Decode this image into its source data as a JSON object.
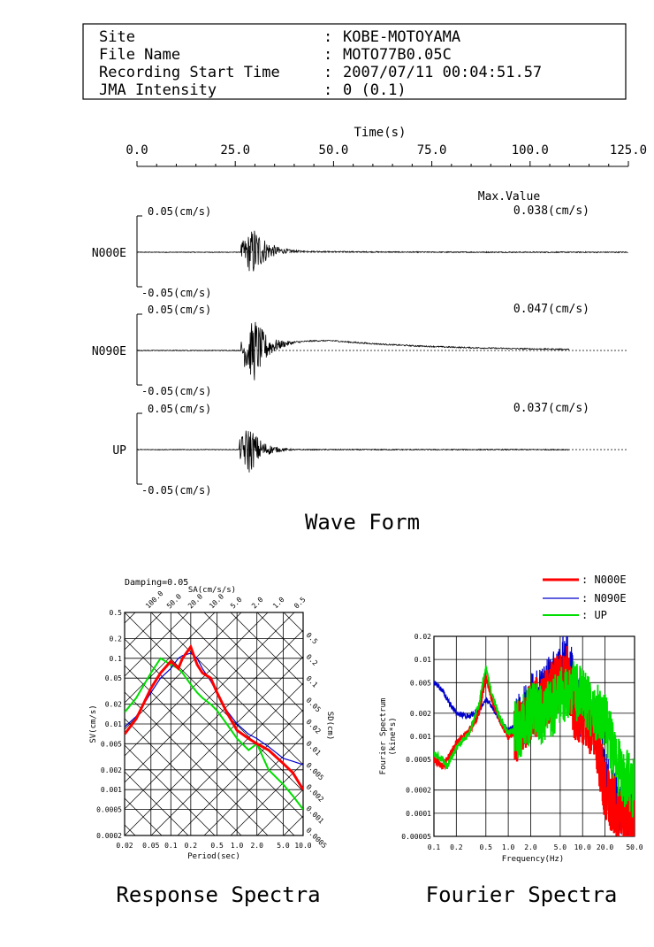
{
  "header": {
    "rows": [
      {
        "label": "Site",
        "value": "KOBE-MOTOYAMA"
      },
      {
        "label": "File Name",
        "value": "MOTO77B0.05C"
      },
      {
        "label": "Recording Start Time",
        "value": "2007/07/11 00:04:51.57"
      },
      {
        "label": "JMA Intensity",
        "value": "0 (0.1)"
      }
    ]
  },
  "waveform": {
    "title": "Wave Form",
    "time_axis_label": "Time(s)",
    "time_ticks": [
      "0.0",
      "25.0",
      "50.0",
      "75.0",
      "100.0",
      "125.0"
    ],
    "max_value_label": "Max.Value",
    "channels": [
      {
        "name": "N000E",
        "max_value": "0.038(cm/s)",
        "top_label": "0.05(cm/s)",
        "bottom_label": "-0.05(cm/s)"
      },
      {
        "name": "N090E",
        "max_value": "0.047(cm/s)",
        "top_label": "0.05(cm/s)",
        "bottom_label": "-0.05(cm/s)"
      },
      {
        "name": "UP",
        "max_value": "0.037(cm/s)",
        "top_label": "0.05(cm/s)",
        "bottom_label": "-0.05(cm/s)"
      }
    ]
  },
  "response": {
    "title": "Response Spectra",
    "damping": "Damping=0.05",
    "sa_label": "SA(cm/s/s)",
    "sd_label": "SD(cm)",
    "sv_label": "SV(cm/s)",
    "xlabel": "Period(sec)"
  },
  "fourier": {
    "title": "Fourier Spectra",
    "ylabel_line1": "Fourier Spectrum",
    "ylabel_line2": "(kine*s)",
    "xlabel": "Frequency(Hz)"
  },
  "legend": [
    {
      "name": ": N000E",
      "color": "#ff0000"
    },
    {
      "name": ": N090E",
      "color": "#0000cc"
    },
    {
      "name": ": UP",
      "color": "#00dd00"
    }
  ],
  "chart_data": [
    {
      "type": "line",
      "title": "Wave Form",
      "xlabel": "Time(s)",
      "xlim": [
        0,
        125
      ],
      "ylim": [
        -0.05,
        0.05
      ],
      "series": [
        {
          "name": "N000E",
          "peak_abs": 0.038,
          "duration_s": 125
        },
        {
          "name": "N090E",
          "peak_abs": 0.047,
          "duration_s": 110
        },
        {
          "name": "UP",
          "peak_abs": 0.037,
          "duration_s": 110
        }
      ]
    },
    {
      "type": "line",
      "title": "Response Spectra",
      "xlabel": "Period(sec)",
      "ylabel": "SV(cm/s)",
      "xscale": "log",
      "yscale": "log",
      "xlim": [
        0.02,
        10.0
      ],
      "ylim": [
        0.0002,
        0.5
      ],
      "xticks": [
        0.02,
        0.05,
        0.1,
        0.2,
        0.5,
        1.0,
        2.0,
        5.0,
        10.0
      ],
      "yticks": [
        0.0002,
        0.0005,
        0.001,
        0.002,
        0.005,
        0.01,
        0.02,
        0.05,
        0.1,
        0.2,
        0.5
      ],
      "sa_ticks": [
        100.0,
        50.0,
        20.0,
        10.0,
        5.0,
        2.0,
        1.0,
        0.5
      ],
      "sd_ticks": [
        0.5,
        0.2,
        0.1,
        0.05,
        0.02,
        0.01,
        0.005,
        0.002,
        0.001,
        0.0005
      ],
      "series": [
        {
          "name": "N000E",
          "x": [
            0.02,
            0.03,
            0.05,
            0.07,
            0.1,
            0.13,
            0.15,
            0.2,
            0.25,
            0.3,
            0.4,
            0.5,
            0.7,
            1.0,
            1.5,
            2.0,
            3.0,
            5.0,
            7.0,
            10.0
          ],
          "y": [
            0.007,
            0.012,
            0.035,
            0.06,
            0.09,
            0.07,
            0.1,
            0.15,
            0.08,
            0.06,
            0.05,
            0.03,
            0.015,
            0.008,
            0.006,
            0.005,
            0.004,
            0.0025,
            0.0018,
            0.001
          ]
        },
        {
          "name": "N090E",
          "x": [
            0.02,
            0.03,
            0.05,
            0.07,
            0.1,
            0.13,
            0.15,
            0.2,
            0.25,
            0.3,
            0.4,
            0.5,
            0.7,
            1.0,
            1.5,
            2.0,
            3.0,
            5.0,
            7.0,
            10.0
          ],
          "y": [
            0.009,
            0.013,
            0.03,
            0.05,
            0.07,
            0.1,
            0.11,
            0.12,
            0.1,
            0.07,
            0.045,
            0.03,
            0.016,
            0.01,
            0.007,
            0.006,
            0.0045,
            0.003,
            0.0027,
            0.0024
          ]
        },
        {
          "name": "UP",
          "x": [
            0.02,
            0.03,
            0.05,
            0.07,
            0.1,
            0.13,
            0.15,
            0.2,
            0.25,
            0.3,
            0.4,
            0.5,
            0.7,
            1.0,
            1.5,
            2.0,
            3.0,
            5.0,
            7.0,
            10.0
          ],
          "y": [
            0.015,
            0.025,
            0.06,
            0.1,
            0.08,
            0.07,
            0.06,
            0.04,
            0.03,
            0.025,
            0.02,
            0.016,
            0.01,
            0.006,
            0.004,
            0.005,
            0.002,
            0.0012,
            0.0008,
            0.0005
          ]
        }
      ]
    },
    {
      "type": "line",
      "title": "Fourier Spectra",
      "xlabel": "Frequency(Hz)",
      "ylabel": "Fourier Spectrum (kine*s)",
      "xscale": "log",
      "yscale": "log",
      "xlim": [
        0.1,
        50.0
      ],
      "ylim": [
        5e-05,
        0.02
      ],
      "xticks": [
        0.1,
        0.2,
        0.5,
        1.0,
        2.0,
        5.0,
        10.0,
        20.0,
        50.0
      ],
      "yticks": [
        5e-05,
        0.0001,
        0.0002,
        0.0005,
        0.001,
        0.002,
        0.005,
        0.01,
        0.02
      ],
      "series": [
        {
          "name": "N000E",
          "x": [
            0.1,
            0.13,
            0.15,
            0.2,
            0.3,
            0.4,
            0.5,
            0.6,
            0.8,
            1.0,
            1.5,
            2.0,
            3.0,
            5.0,
            6.0,
            8.0,
            10.0,
            15.0,
            20.0,
            30.0,
            50.0
          ],
          "y": [
            0.0005,
            0.0004,
            0.0005,
            0.0008,
            0.0012,
            0.002,
            0.006,
            0.003,
            0.0015,
            0.001,
            0.0012,
            0.002,
            0.003,
            0.005,
            0.008,
            0.002,
            0.002,
            0.001,
            0.0002,
            0.0001,
            8e-05
          ]
        },
        {
          "name": "N090E",
          "x": [
            0.1,
            0.13,
            0.15,
            0.2,
            0.3,
            0.4,
            0.5,
            0.6,
            0.8,
            1.0,
            1.5,
            2.0,
            3.0,
            5.0,
            6.0,
            8.0,
            10.0,
            15.0,
            20.0,
            30.0,
            50.0
          ],
          "y": [
            0.005,
            0.004,
            0.003,
            0.002,
            0.0018,
            0.0022,
            0.003,
            0.0025,
            0.0015,
            0.0012,
            0.0015,
            0.003,
            0.004,
            0.006,
            0.015,
            0.003,
            0.002,
            0.0015,
            0.0003,
            0.00012,
            8e-05
          ]
        },
        {
          "name": "UP",
          "x": [
            0.1,
            0.13,
            0.15,
            0.2,
            0.3,
            0.4,
            0.5,
            0.6,
            0.8,
            1.0,
            1.5,
            2.0,
            3.0,
            5.0,
            6.0,
            8.0,
            10.0,
            15.0,
            20.0,
            30.0,
            50.0
          ],
          "y": [
            0.0006,
            0.0005,
            0.0004,
            0.0007,
            0.0011,
            0.0025,
            0.008,
            0.0035,
            0.0016,
            0.0011,
            0.0013,
            0.002,
            0.002,
            0.003,
            0.004,
            0.004,
            0.0035,
            0.002,
            0.0015,
            0.0004,
            0.0002
          ]
        }
      ]
    }
  ]
}
